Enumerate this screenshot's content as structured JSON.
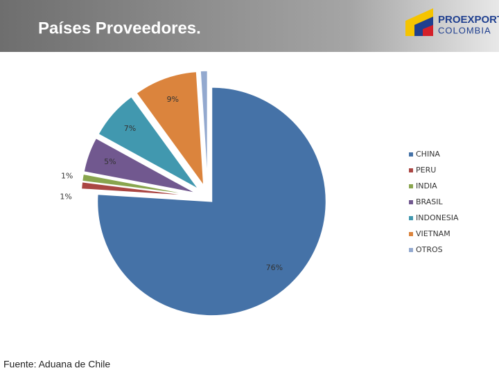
{
  "header": {
    "title": "Países Proveedores.",
    "logo_top": "PROEXPORT",
    "logo_bottom": "COLOMBIA"
  },
  "chart_data": {
    "type": "pie",
    "categories": [
      "CHINA",
      "PERU",
      "INDIA",
      "BRASIL",
      "INDONESIA",
      "VIETNAM",
      "OTROS"
    ],
    "values": [
      76,
      1,
      1,
      5,
      7,
      9,
      1
    ],
    "value_labels": [
      "76%",
      "1%",
      "1%",
      "5%",
      "7%",
      "9%",
      null
    ],
    "colors": [
      "#4572a7",
      "#aa4643",
      "#89a54e",
      "#71588f",
      "#4198af",
      "#db843d",
      "#93a9cf"
    ],
    "legend": "right"
  },
  "footer": {
    "source": "Fuente: Aduana de Chile"
  }
}
